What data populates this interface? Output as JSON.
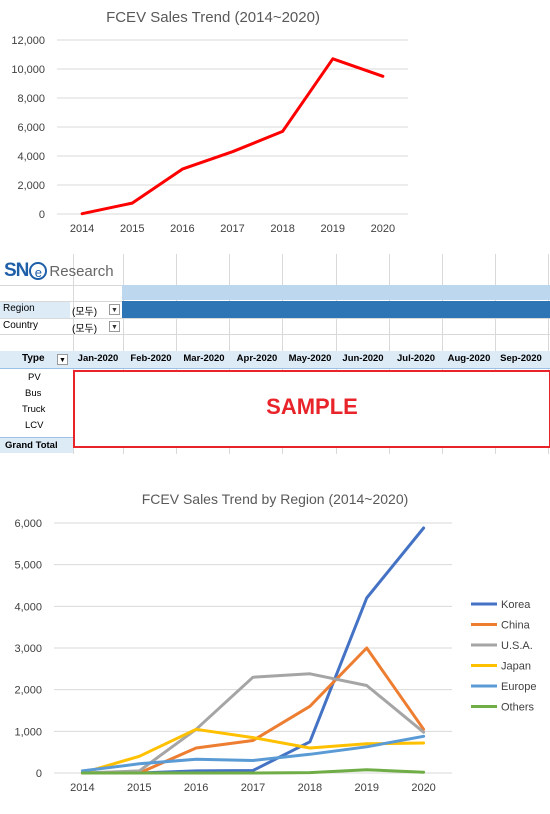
{
  "chart_data": [
    {
      "type": "line",
      "title": "FCEV Sales Trend (2014~2020)",
      "x": [
        "2014",
        "2015",
        "2016",
        "2017",
        "2018",
        "2019",
        "2020"
      ],
      "series": [
        {
          "values": [
            20,
            750,
            3100,
            4300,
            5700,
            10700,
            9500
          ],
          "color": "#ff0000"
        }
      ],
      "ylim": [
        0,
        12000
      ],
      "yticks": [
        "0",
        "2,000",
        "4,000",
        "6,000",
        "8,000",
        "10,000",
        "12,000"
      ],
      "grid": true,
      "legend": "none"
    },
    {
      "type": "line",
      "title": "FCEV Sales Trend by Region (2014~2020)",
      "x": [
        "2014",
        "2015",
        "2016",
        "2017",
        "2018",
        "2019",
        "2020"
      ],
      "series": [
        {
          "name": "Korea",
          "color": "#4472c4",
          "values": [
            0,
            0,
            50,
            60,
            750,
            4200,
            5880
          ]
        },
        {
          "name": "China",
          "color": "#ed7d31",
          "values": [
            0,
            0,
            600,
            780,
            1600,
            3000,
            1050
          ]
        },
        {
          "name": "U.S.A.",
          "color": "#a5a5a5",
          "values": [
            0,
            50,
            1050,
            2300,
            2380,
            2100,
            980
          ]
        },
        {
          "name": "Japan",
          "color": "#ffc000",
          "values": [
            0,
            400,
            1050,
            850,
            600,
            700,
            720
          ]
        },
        {
          "name": "Europe",
          "color": "#5b9bd5",
          "values": [
            50,
            220,
            330,
            300,
            450,
            630,
            880
          ]
        },
        {
          "name": "Others",
          "color": "#70ad47",
          "values": [
            0,
            0,
            0,
            0,
            10,
            80,
            20
          ]
        }
      ],
      "ylim": [
        0,
        6000
      ],
      "yticks": [
        "0",
        "1,000",
        "2,000",
        "3,000",
        "4,000",
        "5,000",
        "6,000"
      ],
      "grid": true,
      "legend": "right"
    }
  ],
  "pivot": {
    "logo_sne": "SN",
    "logo_e": "e",
    "logo_research": "Research",
    "filters": [
      {
        "label": "Region",
        "value": "(모두)"
      },
      {
        "label": "Country",
        "value": "(모두)"
      }
    ],
    "type_header": "Type",
    "months": [
      "Jan-2020",
      "Feb-2020",
      "Mar-2020",
      "Apr-2020",
      "May-2020",
      "Jun-2020",
      "Jul-2020",
      "Aug-2020",
      "Sep-2020"
    ],
    "rows": [
      "PV",
      "Bus",
      "Truck",
      "LCV"
    ],
    "grand_total": "Grand Total",
    "sample": "SAMPLE"
  }
}
